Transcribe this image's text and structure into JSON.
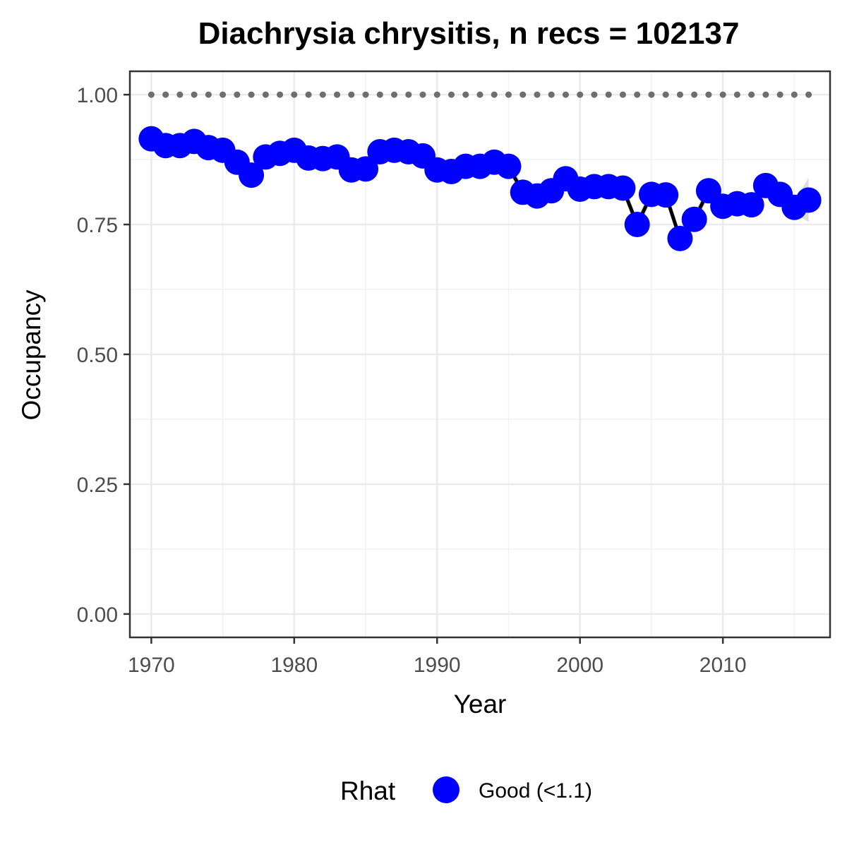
{
  "chart_data": {
    "type": "line",
    "title": "Diachrysia chrysitis, n recs = 102137",
    "xlabel": "Year",
    "ylabel": "Occupancy",
    "xlim": [
      1968.5,
      2017.5
    ],
    "ylim": [
      -0.045,
      1.045
    ],
    "x_ticks": [
      1970,
      1980,
      1990,
      2000,
      2010
    ],
    "x_tick_labels": [
      "1970",
      "1980",
      "1990",
      "2000",
      "2010"
    ],
    "y_ticks": [
      0,
      0.25,
      0.5,
      0.75,
      1
    ],
    "y_tick_labels": [
      "0.00",
      "0.25",
      "0.50",
      "0.75",
      "1.00"
    ],
    "grid": true,
    "legend": {
      "title": "Rhat",
      "position": "bottom",
      "entries": [
        {
          "label": "Good (<1.1)",
          "color": "#0000ff"
        }
      ]
    },
    "colors": {
      "points": "#0000ff",
      "line": "#000000",
      "ribbon": "#d9d9d9",
      "reference": "#6e6e6e"
    },
    "reference_line": {
      "y": 1.0,
      "style": "dotted"
    },
    "series": [
      {
        "name": "Good (<1.1)",
        "x": [
          1970,
          1971,
          1972,
          1973,
          1974,
          1975,
          1976,
          1977,
          1978,
          1979,
          1980,
          1981,
          1982,
          1983,
          1984,
          1985,
          1986,
          1987,
          1988,
          1989,
          1990,
          1991,
          1992,
          1993,
          1994,
          1995,
          1996,
          1997,
          1998,
          1999,
          2000,
          2001,
          2002,
          2003,
          2004,
          2005,
          2006,
          2007,
          2008,
          2009,
          2010,
          2011,
          2012,
          2013,
          2014,
          2015,
          2016
        ],
        "y": [
          0.915,
          0.902,
          0.902,
          0.91,
          0.898,
          0.893,
          0.87,
          0.845,
          0.88,
          0.887,
          0.893,
          0.878,
          0.877,
          0.88,
          0.855,
          0.857,
          0.89,
          0.893,
          0.89,
          0.882,
          0.855,
          0.852,
          0.862,
          0.862,
          0.87,
          0.862,
          0.812,
          0.805,
          0.815,
          0.838,
          0.818,
          0.823,
          0.823,
          0.82,
          0.75,
          0.808,
          0.807,
          0.723,
          0.76,
          0.815,
          0.785,
          0.79,
          0.788,
          0.825,
          0.808,
          0.783,
          0.797
        ],
        "lower": [
          0.902,
          0.89,
          0.89,
          0.898,
          0.886,
          0.881,
          0.858,
          0.833,
          0.868,
          0.875,
          0.881,
          0.866,
          0.865,
          0.868,
          0.843,
          0.845,
          0.878,
          0.881,
          0.878,
          0.87,
          0.843,
          0.84,
          0.85,
          0.85,
          0.858,
          0.85,
          0.8,
          0.793,
          0.803,
          0.826,
          0.806,
          0.811,
          0.811,
          0.808,
          0.738,
          0.796,
          0.795,
          0.711,
          0.748,
          0.803,
          0.773,
          0.778,
          0.776,
          0.813,
          0.796,
          0.771,
          0.755
        ],
        "upper": [
          0.928,
          0.914,
          0.914,
          0.922,
          0.91,
          0.905,
          0.882,
          0.857,
          0.892,
          0.899,
          0.905,
          0.89,
          0.889,
          0.892,
          0.867,
          0.869,
          0.902,
          0.905,
          0.902,
          0.894,
          0.867,
          0.864,
          0.874,
          0.874,
          0.882,
          0.874,
          0.824,
          0.817,
          0.827,
          0.85,
          0.83,
          0.835,
          0.835,
          0.832,
          0.762,
          0.82,
          0.819,
          0.735,
          0.772,
          0.827,
          0.797,
          0.802,
          0.8,
          0.837,
          0.82,
          0.795,
          0.84
        ]
      }
    ]
  }
}
